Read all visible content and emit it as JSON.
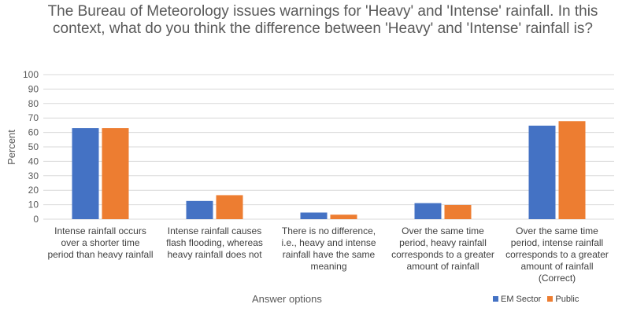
{
  "chart_data": {
    "type": "bar",
    "title": "The Bureau of Meteorology issues warnings for 'Heavy' and 'Intense' rainfall. In this context, what do you think the difference between 'Heavy' and 'Intense' rainfall is?",
    "xlabel": "Answer options",
    "ylabel": "Percent",
    "ylim": [
      0,
      100
    ],
    "yticks": [
      0,
      10,
      20,
      30,
      40,
      50,
      60,
      70,
      80,
      90,
      100
    ],
    "grid": true,
    "legend": "bottom-right",
    "categories": [
      [
        "Intense rainfall occurs",
        "over a shorter time",
        "period than heavy rainfall"
      ],
      [
        "Intense rainfall causes",
        "flash flooding, whereas",
        "heavy rainfall does not"
      ],
      [
        "There is no difference,",
        "i.e., heavy and intense",
        "rainfall have the same",
        "meaning"
      ],
      [
        "Over the same time",
        "period, heavy rainfall",
        "corresponds to a greater",
        "amount of rainfall"
      ],
      [
        "Over the same time",
        "period, intense rainfall",
        "corresponds to a greater",
        "amount of rainfall",
        "(Correct)"
      ]
    ],
    "series": [
      {
        "name": "EM Sector",
        "color": "#4472C4",
        "values": [
          63.0,
          12.6,
          4.6,
          11.1,
          64.7
        ]
      },
      {
        "name": "Public",
        "color": "#ED7D31",
        "values": [
          63.0,
          16.6,
          3.1,
          9.8,
          67.8
        ]
      }
    ]
  }
}
